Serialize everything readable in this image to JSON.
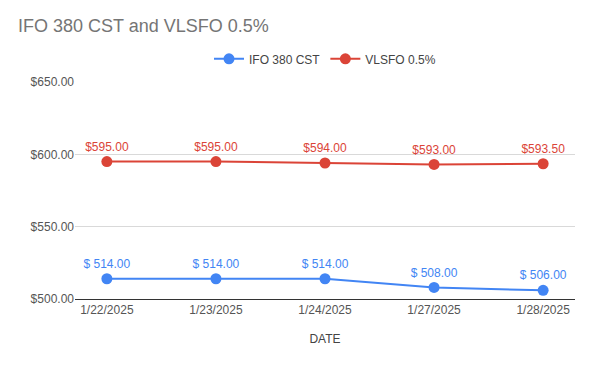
{
  "chart_data": {
    "type": "line",
    "title": "IFO 380 CST and VLSFO 0.5%",
    "x_label": "DATE",
    "categories": [
      "1/22/2025",
      "1/23/2025",
      "1/24/2025",
      "1/27/2025",
      "1/28/2025"
    ],
    "series": [
      {
        "name": "IFO 380 CST",
        "color": "#4285f4",
        "marker": "circle",
        "line_style": "solid",
        "values": [
          514,
          514,
          514,
          508,
          506
        ],
        "value_labels": [
          "$ 514.00",
          "$ 514.00",
          "$ 514.00",
          "$ 508.00",
          "$ 506.00"
        ]
      },
      {
        "name": "VLSFO 0.5%",
        "color": "#db4437",
        "marker": "circle",
        "line_style": "solid",
        "values": [
          595,
          595,
          594,
          593,
          593.5
        ],
        "value_labels": [
          "$595.00",
          "$595.00",
          "$594.00",
          "$593.00",
          "$593.50"
        ]
      }
    ],
    "ylim": [
      500,
      650
    ],
    "yticks": [
      {
        "value": 500,
        "label": "$500.00"
      },
      {
        "value": 550,
        "label": "$550.00"
      },
      {
        "value": 600,
        "label": "$600.00"
      },
      {
        "value": 650,
        "label": "$650.00"
      }
    ],
    "grid": true,
    "legend": "top",
    "data_labels": true
  }
}
